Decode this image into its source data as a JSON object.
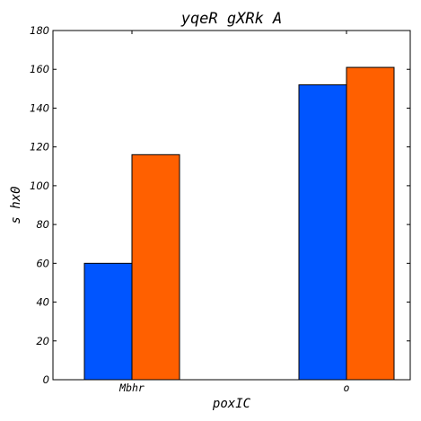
{
  "chart_data": {
    "type": "bar",
    "title": "yqeR gXRk A",
    "xlabel": "poxIC",
    "ylabel": "s  hx0",
    "categories": [
      "Mbhr",
      "o"
    ],
    "series": [
      {
        "values": [
          60,
          152
        ],
        "color": "#0055ff"
      },
      {
        "values": [
          116,
          161
        ],
        "color": "#ff6000"
      }
    ],
    "ylim": [
      0,
      180
    ],
    "yticks": [
      "0",
      "20",
      "40",
      "60",
      "80",
      "100",
      "120",
      "140",
      "160",
      "180"
    ],
    "grid": false,
    "legend": "none"
  }
}
